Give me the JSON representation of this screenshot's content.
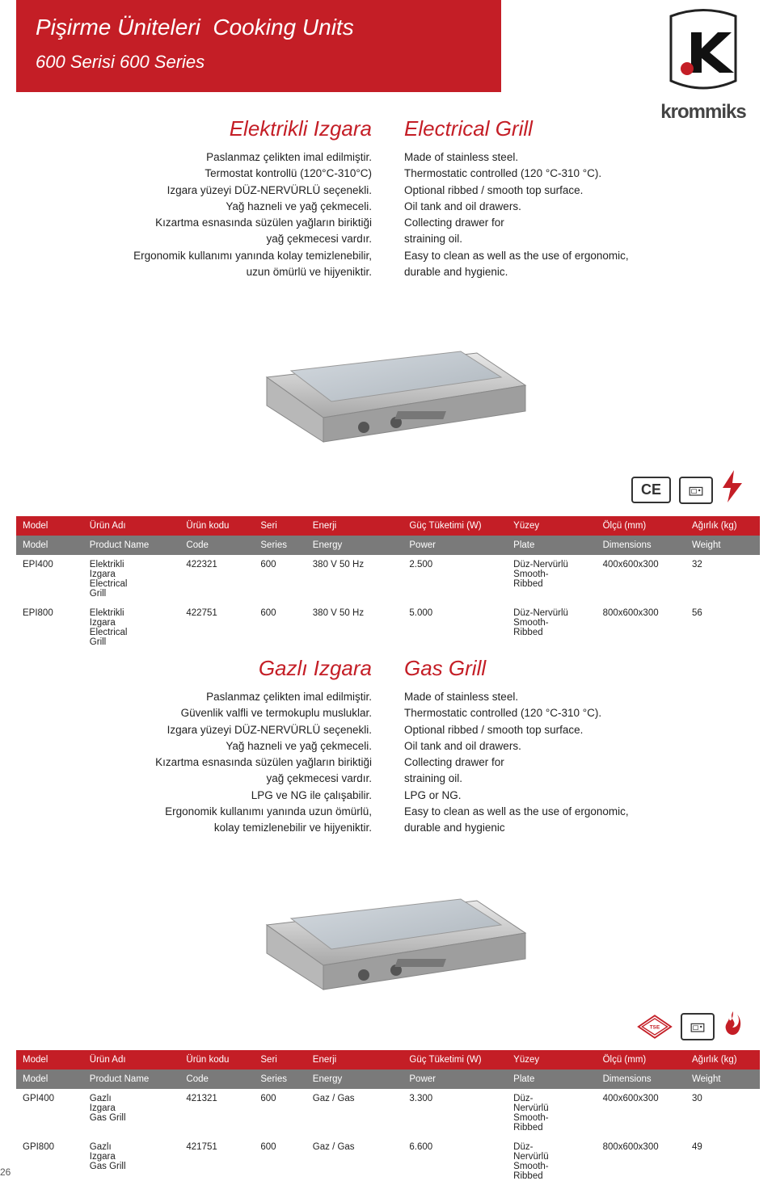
{
  "banner": {
    "title_tr": "Pişirme Üniteleri",
    "title_en": "Cooking Units",
    "subtitle_tr": "600 Serisi",
    "subtitle_en": "600 Series"
  },
  "brand": "krommiks",
  "section1": {
    "title_tr": "Elektrikli Izgara",
    "title_en": "Electrical Grill",
    "desc_tr": "Paslanmaz çelikten imal edilmiştir.\nTermostat kontrollü (120°C-310°C)\nIzgara yüzeyi DÜZ-NERVÜRLÜ seçenekli.\nYağ hazneli ve yağ çekmeceli.\nKızartma esnasında süzülen yağların biriktiği\nyağ çekmecesi vardır.\nErgonomik kullanımı yanında kolay temizlenebilir,\nuzun ömürlü ve hijyeniktir.",
    "desc_en": "Made of stainless steel.\nThermostatic controlled (120 °C-310 °C).\nOptional ribbed / smooth top  surface.\nOil tank and oil drawers.\nCollecting drawer for\nstraining oil.\nEasy to clean as well as the use of ergonomic,\ndurable and hygienic."
  },
  "section2": {
    "title_tr": "Gazlı Izgara",
    "title_en": "Gas Grill",
    "desc_tr": "Paslanmaz çelikten imal edilmiştir.\nGüvenlik valfli ve termokuplu musluklar.\nIzgara yüzeyi DÜZ-NERVÜRLÜ seçenekli.\nYağ hazneli ve yağ çekmeceli.\nKızartma esnasında süzülen yağların biriktiği\nyağ çekmecesi vardır.\nLPG ve NG ile çalışabilir.\nErgonomik kullanımı yanında uzun ömürlü,\nkolay temizlenebilir ve hijyeniktir.",
    "desc_en": "Made of stainless steel.\nThermostatic controlled (120 °C-310 °C).\nOptional ribbed / smooth top surface.\nOil tank and oil drawers.\nCollecting drawer for\nstraining oil.\nLPG or NG.\nEasy to clean as well as the use of ergonomic,\ndurable and hygienic"
  },
  "table_headers_tr": [
    "Model",
    "Ürün Adı",
    "Ürün kodu",
    "Seri",
    "Enerji",
    "Güç Tüketimi (W)",
    "Yüzey",
    "Ölçü (mm)",
    "Ağırlık (kg)"
  ],
  "table_headers_en": [
    "Model",
    "Product Name",
    "Code",
    "Series",
    "Energy",
    "Power",
    "Plate",
    "Dimensions",
    "Weight"
  ],
  "table1_rows": [
    {
      "model": "EPI400",
      "name": "Elektrikli\nIzgara\nElectrical\nGrill",
      "code": "422321",
      "series": "600",
      "energy": "380 V  50 Hz",
      "power": "2.500",
      "plate": "Düz-Nervürlü\nSmooth-\nRibbed",
      "dim": "400x600x300",
      "weight": "32"
    },
    {
      "model": "EPI800",
      "name": "Elektrikli\nIzgara\nElectrical\nGrill",
      "code": "422751",
      "series": "600",
      "energy": "380 V  50 Hz",
      "power": "5.000",
      "plate": "Düz-Nervürlü\nSmooth-\nRibbed",
      "dim": "800x600x300",
      "weight": "56"
    }
  ],
  "table2_rows": [
    {
      "model": "GPI400",
      "name": "Gazlı\nIzgara\nGas Grill",
      "code": "421321",
      "series": "600",
      "energy": "Gaz  / Gas",
      "power": "3.300",
      "plate": "Düz-\nNervürlü\nSmooth-\nRibbed",
      "dim": "400x600x300",
      "weight": "30"
    },
    {
      "model": "GPI800",
      "name": "Gazlı\nIzgara\nGas Grill",
      "code": "421751",
      "series": "600",
      "energy": "Gaz  / Gas",
      "power": "6.600",
      "plate": "Düz-\nNervürlü\nSmooth-\nRibbed",
      "dim": "800x600x300",
      "weight": "49"
    }
  ],
  "cert_ce": "CE",
  "col_widths": [
    "9%",
    "13%",
    "10%",
    "7%",
    "13%",
    "14%",
    "12%",
    "12%",
    "10%"
  ],
  "colors": {
    "brand_red": "#c41e26",
    "header_grey": "#7a7a7a",
    "text": "#222222",
    "steel1": "#d8d8d8",
    "steel2": "#b0b0b0",
    "steel3": "#9a9a9a",
    "plate": "#c5cbd1"
  },
  "page_number": "26"
}
